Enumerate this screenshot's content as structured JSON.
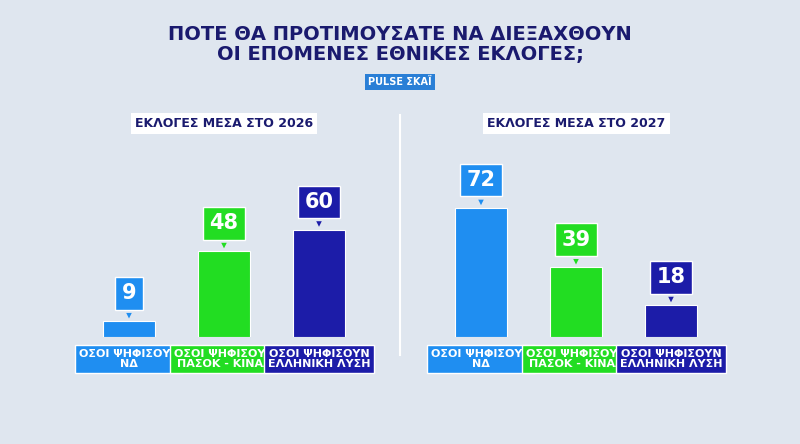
{
  "title": "ΠΟΤΕ ΘΑ ΠΡΟΤΙΜΟΥΣΑΤΕ ΝΑ ΔΙΕΞΑΧΘΟΥΝ\nΟΙ ΕΠΟΜΕΝΕΣ ΕΘΝΙΚΕΣ ΕΚΛΟΓΕΣ;",
  "source": "PULSE ΣΚΑΪ",
  "chart_data": [
    {
      "type": "bar",
      "title": "ΕΚΛΟΓΕΣ ΜΕΣΑ ΣΤΟ 2026",
      "categories": [
        "ΟΣΟΙ ΨΗΦΙΣΟΥΝ\nΝΔ",
        "ΟΣΟΙ ΨΗΦΙΣΟΥΝ\nΠΑΣΟΚ - ΚΙΝΑΛ",
        "ΟΣΟΙ ΨΗΦΙΣΟΥΝ\nΕΛΛΗΝΙΚΗ ΛΥΣΗ"
      ],
      "values": [
        9,
        48,
        60
      ],
      "colors": [
        "#1f8ef1",
        "#22dd22",
        "#1c1ca8"
      ],
      "ylim": [
        0,
        100
      ],
      "data_labels": true,
      "tick_labels": "x",
      "grid": false
    },
    {
      "type": "bar",
      "title": "ΕΚΛΟΓΕΣ ΜΕΣΑ ΣΤΟ 2027",
      "categories": [
        "ΟΣΟΙ ΨΗΦΙΣΟΥΝ\nΝΔ",
        "ΟΣΟΙ ΨΗΦΙΣΟΥΝ\nΠΑΣΟΚ - ΚΙΝΑΛ",
        "ΟΣΟΙ ΨΗΦΙΣΟΥΝ\nΕΛΛΗΝΙΚΗ ΛΥΣΗ"
      ],
      "values": [
        72,
        39,
        18
      ],
      "colors": [
        "#1f8ef1",
        "#22dd22",
        "#1c1ca8"
      ],
      "ylim": [
        0,
        100
      ],
      "data_labels": true,
      "tick_labels": "x",
      "grid": false
    }
  ]
}
